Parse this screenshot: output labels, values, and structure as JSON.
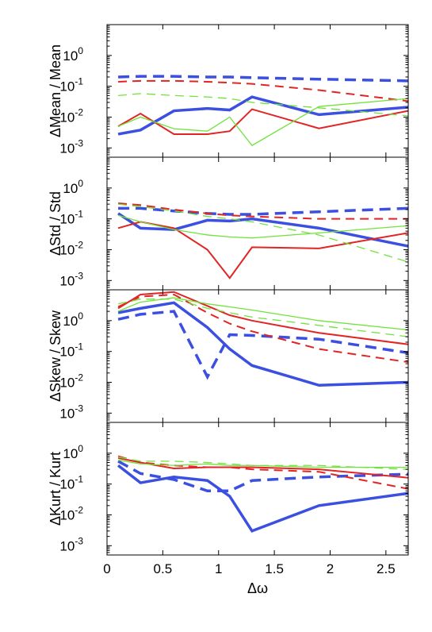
{
  "chart_data": {
    "type": "line",
    "x_label": "Δω",
    "x_ticks": [
      0,
      0.5,
      1,
      1.5,
      2,
      2.5
    ],
    "x_tick_labels": [
      "0",
      "0.5",
      "1",
      "1.5",
      "2",
      "2.5"
    ],
    "xlim": [
      0,
      2.7
    ],
    "y_scale": "log",
    "ylim": [
      0.0005,
      10
    ],
    "y_tick_exponents": [
      0,
      -1,
      -2,
      -3
    ],
    "y_tick_base": "10",
    "grid": false,
    "legend": "none",
    "x": [
      0.1,
      0.3,
      0.6,
      0.9,
      1.1,
      1.3,
      1.9,
      2.7
    ],
    "line_styles": [
      {
        "color": "#3b4fe0",
        "dashed": true,
        "width": 3.5
      },
      {
        "color": "#3b4fe0",
        "dashed": false,
        "width": 3.5
      },
      {
        "color": "#e32424",
        "dashed": true,
        "width": 2
      },
      {
        "color": "#e32424",
        "dashed": false,
        "width": 2
      },
      {
        "color": "#6fe33a",
        "dashed": true,
        "width": 1.3
      },
      {
        "color": "#6fe33a",
        "dashed": false,
        "width": 1.3
      }
    ],
    "panels": [
      {
        "ylabel": "ΔMean / Mean",
        "series": [
          {
            "values": [
              0.2,
              0.21,
              0.21,
              0.2,
              0.2,
              0.19,
              0.17,
              0.15
            ]
          },
          {
            "values": [
              0.0028,
              0.0038,
              0.016,
              0.019,
              0.017,
              0.045,
              0.012,
              0.021
            ]
          },
          {
            "values": [
              0.14,
              0.15,
              0.15,
              0.14,
              0.13,
              0.12,
              0.075,
              0.033
            ]
          },
          {
            "values": [
              0.005,
              0.013,
              0.0028,
              0.0028,
              0.0035,
              0.018,
              0.0043,
              0.016
            ]
          },
          {
            "values": [
              0.05,
              0.058,
              0.05,
              0.045,
              0.04,
              0.03,
              0.02,
              0.011
            ]
          },
          {
            "values": [
              0.005,
              0.01,
              0.0042,
              0.0035,
              0.01,
              0.0012,
              0.022,
              0.04
            ]
          }
        ]
      },
      {
        "ylabel": "ΔStd / Std",
        "series": [
          {
            "values": [
              0.22,
              0.22,
              0.18,
              0.15,
              0.14,
              0.14,
              0.17,
              0.22
            ]
          },
          {
            "values": [
              0.15,
              0.05,
              0.045,
              0.09,
              0.085,
              0.1,
              0.05,
              0.013
            ]
          },
          {
            "values": [
              0.32,
              0.28,
              0.2,
              0.15,
              0.13,
              0.12,
              0.1,
              0.1
            ]
          },
          {
            "values": [
              0.05,
              0.08,
              0.05,
              0.01,
              0.0012,
              0.012,
              0.011,
              0.035
            ]
          },
          {
            "values": [
              0.3,
              0.25,
              0.18,
              0.12,
              0.1,
              0.08,
              0.03,
              0.004
            ]
          },
          {
            "values": [
              0.13,
              0.08,
              0.045,
              0.03,
              0.026,
              0.024,
              0.035,
              0.06
            ]
          }
        ]
      },
      {
        "ylabel": "ΔSkew / Skew",
        "series": [
          {
            "values": [
              1.1,
              1.6,
              2.0,
              0.015,
              0.35,
              0.33,
              0.25,
              0.09
            ]
          },
          {
            "values": [
              1.8,
              2.5,
              3.8,
              0.6,
              0.12,
              0.035,
              0.008,
              0.01
            ]
          },
          {
            "values": [
              2.8,
              6.0,
              7.0,
              1.8,
              0.8,
              0.45,
              0.12,
              0.045
            ]
          },
          {
            "values": [
              2.5,
              7.0,
              8.5,
              3.0,
              1.5,
              1.0,
              0.4,
              0.17
            ]
          },
          {
            "values": [
              3.5,
              5.0,
              5.0,
              2.5,
              1.8,
              1.3,
              0.7,
              0.3
            ]
          },
          {
            "values": [
              2.0,
              4.0,
              5.5,
              3.5,
              2.8,
              2.2,
              1.0,
              0.5
            ]
          }
        ]
      },
      {
        "ylabel": "ΔKurt / Kurt",
        "series": [
          {
            "values": [
              0.55,
              0.22,
              0.14,
              0.06,
              0.06,
              0.13,
              0.17,
              0.21
            ]
          },
          {
            "values": [
              0.4,
              0.11,
              0.17,
              0.13,
              0.04,
              0.003,
              0.02,
              0.05
            ]
          },
          {
            "values": [
              0.8,
              0.5,
              0.4,
              0.35,
              0.35,
              0.3,
              0.25,
              0.07
            ]
          },
          {
            "values": [
              0.7,
              0.5,
              0.32,
              0.35,
              0.35,
              0.35,
              0.3,
              0.16
            ]
          },
          {
            "values": [
              0.75,
              0.55,
              0.55,
              0.5,
              0.45,
              0.4,
              0.4,
              0.3
            ]
          },
          {
            "values": [
              0.6,
              0.45,
              0.4,
              0.45,
              0.4,
              0.4,
              0.35,
              0.35
            ]
          }
        ]
      }
    ]
  }
}
